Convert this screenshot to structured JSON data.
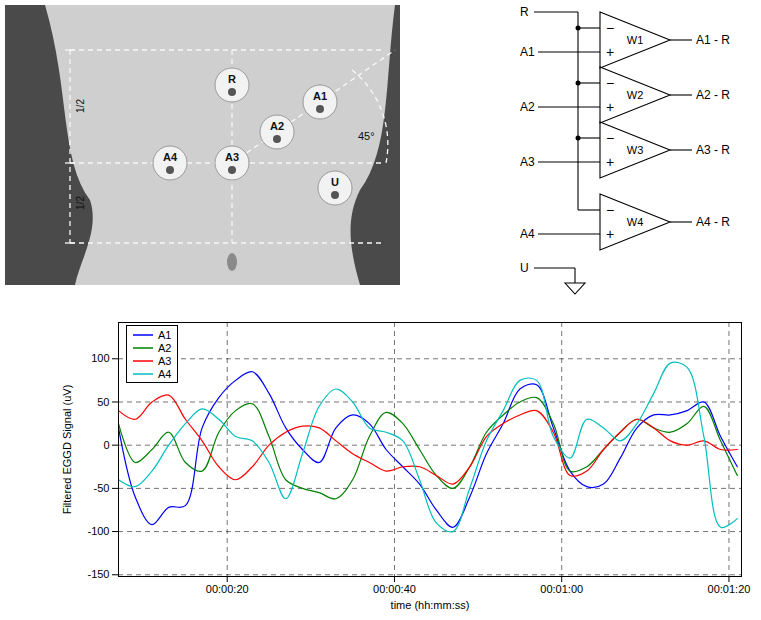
{
  "chart_data": {
    "type": "line",
    "x_label": "time (hh:mm:ss)",
    "y_label": "Filtered EGGD Signal (uV)",
    "x": [
      7,
      9,
      11,
      13,
      15,
      17,
      19,
      21,
      23,
      25,
      27,
      29,
      31,
      33,
      35,
      37,
      39,
      41,
      43,
      45,
      47,
      49,
      51,
      53,
      55,
      57,
      59,
      61,
      63,
      65,
      67,
      69,
      71,
      73,
      75,
      77,
      79,
      81
    ],
    "series": [
      {
        "name": "A1",
        "color": "#0000ff",
        "values": [
          20,
          -60,
          -92,
          -72,
          -70,
          20,
          55,
          75,
          85,
          60,
          20,
          -5,
          -20,
          20,
          35,
          25,
          -5,
          -25,
          -45,
          -75,
          -95,
          -60,
          -10,
          25,
          65,
          70,
          20,
          -30,
          -48,
          -45,
          -15,
          20,
          35,
          35,
          40,
          50,
          10,
          -25
        ]
      },
      {
        "name": "A2",
        "color": "#008000",
        "values": [
          25,
          -20,
          -5,
          15,
          -20,
          -30,
          15,
          40,
          48,
          10,
          -40,
          -50,
          -55,
          -62,
          -40,
          10,
          38,
          25,
          -5,
          -35,
          -50,
          -25,
          15,
          35,
          50,
          55,
          25,
          -30,
          -25,
          -5,
          15,
          30,
          20,
          15,
          25,
          45,
          5,
          -35
        ]
      },
      {
        "name": "A3",
        "color": "#ff0000",
        "values": [
          40,
          30,
          50,
          58,
          30,
          5,
          -25,
          -40,
          -25,
          0,
          15,
          22,
          20,
          5,
          -10,
          -20,
          -30,
          -25,
          -25,
          -35,
          -45,
          -25,
          10,
          25,
          35,
          40,
          15,
          -35,
          -30,
          -5,
          15,
          30,
          20,
          5,
          0,
          5,
          -5,
          -5
        ]
      },
      {
        "name": "A4",
        "color": "#00bfbf",
        "values": [
          -40,
          -48,
          -30,
          0,
          25,
          42,
          30,
          10,
          5,
          -20,
          -62,
          -10,
          45,
          65,
          50,
          20,
          15,
          5,
          -40,
          -90,
          -100,
          -50,
          5,
          40,
          75,
          75,
          10,
          -15,
          30,
          20,
          5,
          25,
          60,
          95,
          90,
          10,
          -95,
          -85
        ]
      }
    ],
    "xlim": [
      7,
      81.5
    ],
    "xticks": [
      {
        "value": 20,
        "label": "00:00:20"
      },
      {
        "value": 40,
        "label": "00:00:40"
      },
      {
        "value": 60,
        "label": "00:01:00"
      },
      {
        "value": 80,
        "label": "00:01:20"
      }
    ],
    "ylim": [
      -152,
      142
    ],
    "yticks": [
      -150,
      -100,
      -50,
      0,
      50,
      100
    ],
    "grid": true,
    "legend": "upper left"
  },
  "electrode_figure": {
    "electrodes": [
      "R",
      "A1",
      "A2",
      "A3",
      "A4",
      "U"
    ],
    "dimension_labels": [
      "1/2",
      "1/2"
    ],
    "angle_label": "45°"
  },
  "circuit": {
    "reference": "R",
    "ground": "U",
    "minus": "−",
    "plus": "+",
    "amplifiers": [
      {
        "name": "W1",
        "input": "A1",
        "output": "A1 - R"
      },
      {
        "name": "W2",
        "input": "A2",
        "output": "A2 - R"
      },
      {
        "name": "W3",
        "input": "A3",
        "output": "A3 - R"
      },
      {
        "name": "W4",
        "input": "A4",
        "output": "A4 - R"
      }
    ]
  }
}
